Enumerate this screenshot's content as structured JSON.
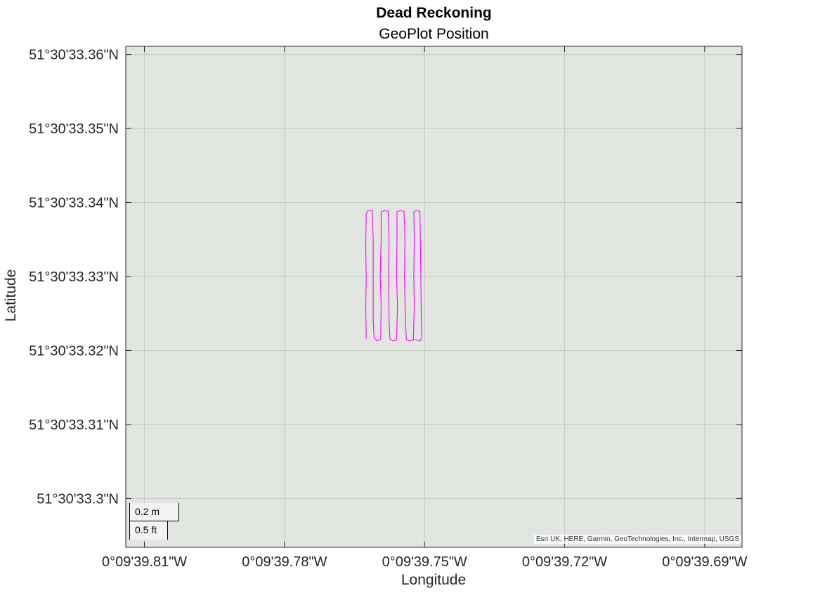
{
  "window": {
    "title": "Dead Reckoning",
    "subtitle": "GeoPlot Position"
  },
  "chart_data": {
    "type": "line",
    "title": "Dead Reckoning",
    "subtitle": "GeoPlot Position",
    "xlabel": "Longitude",
    "ylabel": "Latitude",
    "xlim": [
      -39.814,
      -39.682
    ],
    "ylim": [
      33.2934,
      33.3611
    ],
    "x_ticks": [
      -39.81,
      -39.78,
      -39.75,
      -39.72,
      -39.69
    ],
    "y_ticks": [
      33.36,
      33.35,
      33.34,
      33.33,
      33.32,
      33.31,
      33.3
    ],
    "x_tick_labels": [
      "0°09'39.81\"W",
      "0°09'39.78\"W",
      "0°09'39.75\"W",
      "0°09'39.72\"W",
      "0°09'39.69\"W"
    ],
    "y_tick_labels": [
      "51°30'33.36\"N",
      "51°30'33.35\"N",
      "51°30'33.34\"N",
      "51°30'33.33\"N",
      "51°30'33.32\"N",
      "51°30'33.31\"N",
      "51°30'33.3\"N"
    ],
    "grid": true,
    "basemap_color": "#e1e6e1",
    "series": [
      {
        "color": "#ff00ff",
        "points": [
          [
            -39.7625,
            33.3216
          ],
          [
            -39.7626,
            33.326
          ],
          [
            -39.7625,
            33.33
          ],
          [
            -39.7626,
            33.334
          ],
          [
            -39.7625,
            33.3385
          ],
          [
            -39.7621,
            33.3389
          ],
          [
            -39.7612,
            33.3389
          ],
          [
            -39.761,
            33.335
          ],
          [
            -39.761,
            33.33
          ],
          [
            -39.761,
            33.324
          ],
          [
            -39.7608,
            33.3217
          ],
          [
            -39.7602,
            33.3213
          ],
          [
            -39.7594,
            33.3215
          ],
          [
            -39.7593,
            33.326
          ],
          [
            -39.7595,
            33.33
          ],
          [
            -39.7593,
            33.335
          ],
          [
            -39.7593,
            33.3387
          ],
          [
            -39.7587,
            33.3389
          ],
          [
            -39.7578,
            33.3388
          ],
          [
            -39.7576,
            33.335
          ],
          [
            -39.7577,
            33.33
          ],
          [
            -39.7576,
            33.324
          ],
          [
            -39.7574,
            33.3215
          ],
          [
            -39.7568,
            33.3213
          ],
          [
            -39.756,
            33.3214
          ],
          [
            -39.7558,
            33.326
          ],
          [
            -39.756,
            33.33
          ],
          [
            -39.7559,
            33.335
          ],
          [
            -39.7559,
            33.3387
          ],
          [
            -39.7553,
            33.3389
          ],
          [
            -39.7544,
            33.3388
          ],
          [
            -39.7542,
            33.335
          ],
          [
            -39.7543,
            33.33
          ],
          [
            -39.7541,
            33.324
          ],
          [
            -39.7539,
            33.3215
          ],
          [
            -39.7533,
            33.3213
          ],
          [
            -39.7524,
            33.3214
          ],
          [
            -39.7522,
            33.326
          ],
          [
            -39.7523,
            33.33
          ],
          [
            -39.7522,
            33.335
          ],
          [
            -39.7523,
            33.3387
          ],
          [
            -39.7518,
            33.3389
          ],
          [
            -39.751,
            33.3388
          ],
          [
            -39.7509,
            33.335
          ],
          [
            -39.7508,
            33.33
          ],
          [
            -39.7507,
            33.324
          ],
          [
            -39.7506,
            33.3217
          ],
          [
            -39.751,
            33.3213
          ],
          [
            -39.7522,
            33.3215
          ]
        ]
      }
    ]
  },
  "scale_bar": {
    "metric": "0.2 m",
    "imperial": "0.5 ft"
  },
  "attribution": "Esri UK, HERE, Garmin, GeoTechnologies, Inc., Intermap, USGS"
}
